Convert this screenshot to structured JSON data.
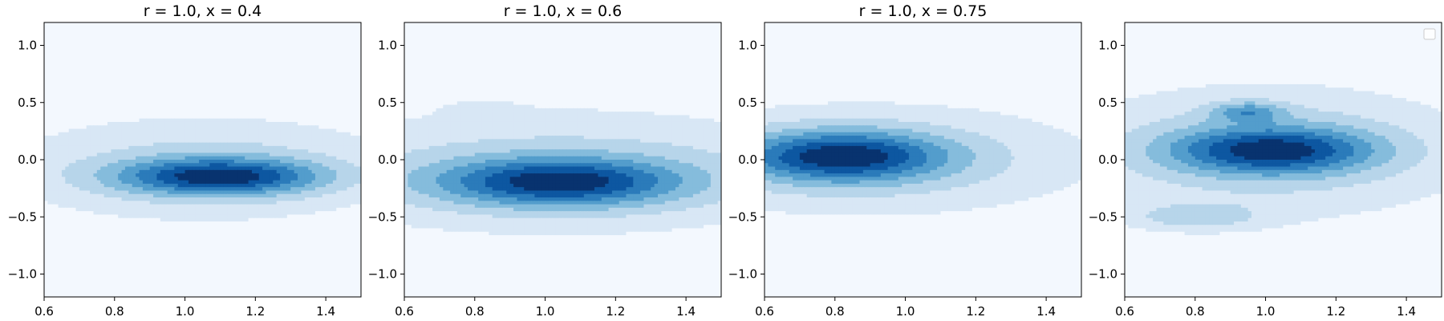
{
  "chart_data": [
    {
      "type": "contour",
      "title": "r = 1.0, x = 0.4",
      "xlim": [
        0.6,
        1.5
      ],
      "ylim": [
        -1.2,
        1.2
      ],
      "xticks": [
        "0.6",
        "0.8",
        "1.0",
        "1.2",
        "1.4"
      ],
      "yticks": [
        "−1.0",
        "−0.5",
        "0.0",
        "0.5",
        "1.0"
      ],
      "colormap": "Blues",
      "levels": 8,
      "peaks": [
        {
          "x": 1.1,
          "y": -0.15,
          "sx": 0.2,
          "sy": 0.11,
          "a": 1.0
        },
        {
          "x": 1.05,
          "y": -0.1,
          "sx": 0.35,
          "sy": 0.28,
          "a": 0.35
        },
        {
          "x": 1.05,
          "y": 0.0,
          "sx": 0.7,
          "sy": 0.55,
          "a": 0.12
        },
        {
          "x": 1.0,
          "y": -1.05,
          "sx": 0.35,
          "sy": 0.12,
          "a": 0.07
        }
      ]
    },
    {
      "type": "contour",
      "title": "r = 1.0, x = 0.6",
      "xlim": [
        0.6,
        1.5
      ],
      "ylim": [
        -1.2,
        1.2
      ],
      "xticks": [
        "0.6",
        "0.8",
        "1.0",
        "1.2",
        "1.4"
      ],
      "yticks": [
        "−1.0",
        "−0.5",
        "0.0",
        "0.5",
        "1.0"
      ],
      "colormap": "Blues",
      "levels": 8,
      "peaks": [
        {
          "x": 1.04,
          "y": -0.2,
          "sx": 0.23,
          "sy": 0.14,
          "a": 1.0
        },
        {
          "x": 1.05,
          "y": -0.15,
          "sx": 0.5,
          "sy": 0.3,
          "a": 0.45
        },
        {
          "x": 1.0,
          "y": 0.1,
          "sx": 0.8,
          "sy": 0.7,
          "a": 0.15
        },
        {
          "x": 0.82,
          "y": 0.45,
          "sx": 0.07,
          "sy": 0.04,
          "a": 0.12
        },
        {
          "x": 1.0,
          "y": -1.0,
          "sx": 0.4,
          "sy": 0.15,
          "a": 0.07
        }
      ]
    },
    {
      "type": "contour",
      "title": "r = 1.0, x = 0.75",
      "xlim": [
        0.6,
        1.5
      ],
      "ylim": [
        -1.2,
        1.2
      ],
      "xticks": [
        "0.6",
        "0.8",
        "1.0",
        "1.2",
        "1.4"
      ],
      "yticks": [
        "−1.0",
        "−0.5",
        "0.0",
        "0.5",
        "1.0"
      ],
      "colormap": "Blues",
      "levels": 8,
      "peaks": [
        {
          "x": 0.82,
          "y": 0.03,
          "sx": 0.2,
          "sy": 0.15,
          "a": 1.0
        },
        {
          "x": 0.85,
          "y": 0.0,
          "sx": 0.38,
          "sy": 0.28,
          "a": 0.4
        },
        {
          "x": 1.0,
          "y": 0.0,
          "sx": 0.75,
          "sy": 0.6,
          "a": 0.15
        },
        {
          "x": 0.75,
          "y": 0.82,
          "sx": 0.03,
          "sy": 0.02,
          "a": 0.06
        },
        {
          "x": 0.65,
          "y": -1.05,
          "sx": 0.1,
          "sy": 0.1,
          "a": 0.08
        }
      ]
    },
    {
      "type": "contour",
      "title": "",
      "xlim": [
        0.6,
        1.5
      ],
      "ylim": [
        -1.2,
        1.2
      ],
      "xticks": [
        "0.6",
        "0.8",
        "1.0",
        "1.2",
        "1.4"
      ],
      "yticks": [
        "−1.0",
        "−0.5",
        "0.0",
        "0.5",
        "1.0"
      ],
      "colormap": "Blues",
      "levels": 8,
      "legend": "top-right",
      "peaks": [
        {
          "x": 1.02,
          "y": 0.08,
          "sx": 0.2,
          "sy": 0.14,
          "a": 0.9
        },
        {
          "x": 0.95,
          "y": 0.42,
          "sx": 0.07,
          "sy": 0.06,
          "a": 0.5
        },
        {
          "x": 0.8,
          "y": -0.5,
          "sx": 0.13,
          "sy": 0.08,
          "a": 0.35
        },
        {
          "x": 1.0,
          "y": 0.1,
          "sx": 0.35,
          "sy": 0.35,
          "a": 0.35
        },
        {
          "x": 1.0,
          "y": 0.0,
          "sx": 0.7,
          "sy": 0.6,
          "a": 0.15
        }
      ]
    }
  ]
}
